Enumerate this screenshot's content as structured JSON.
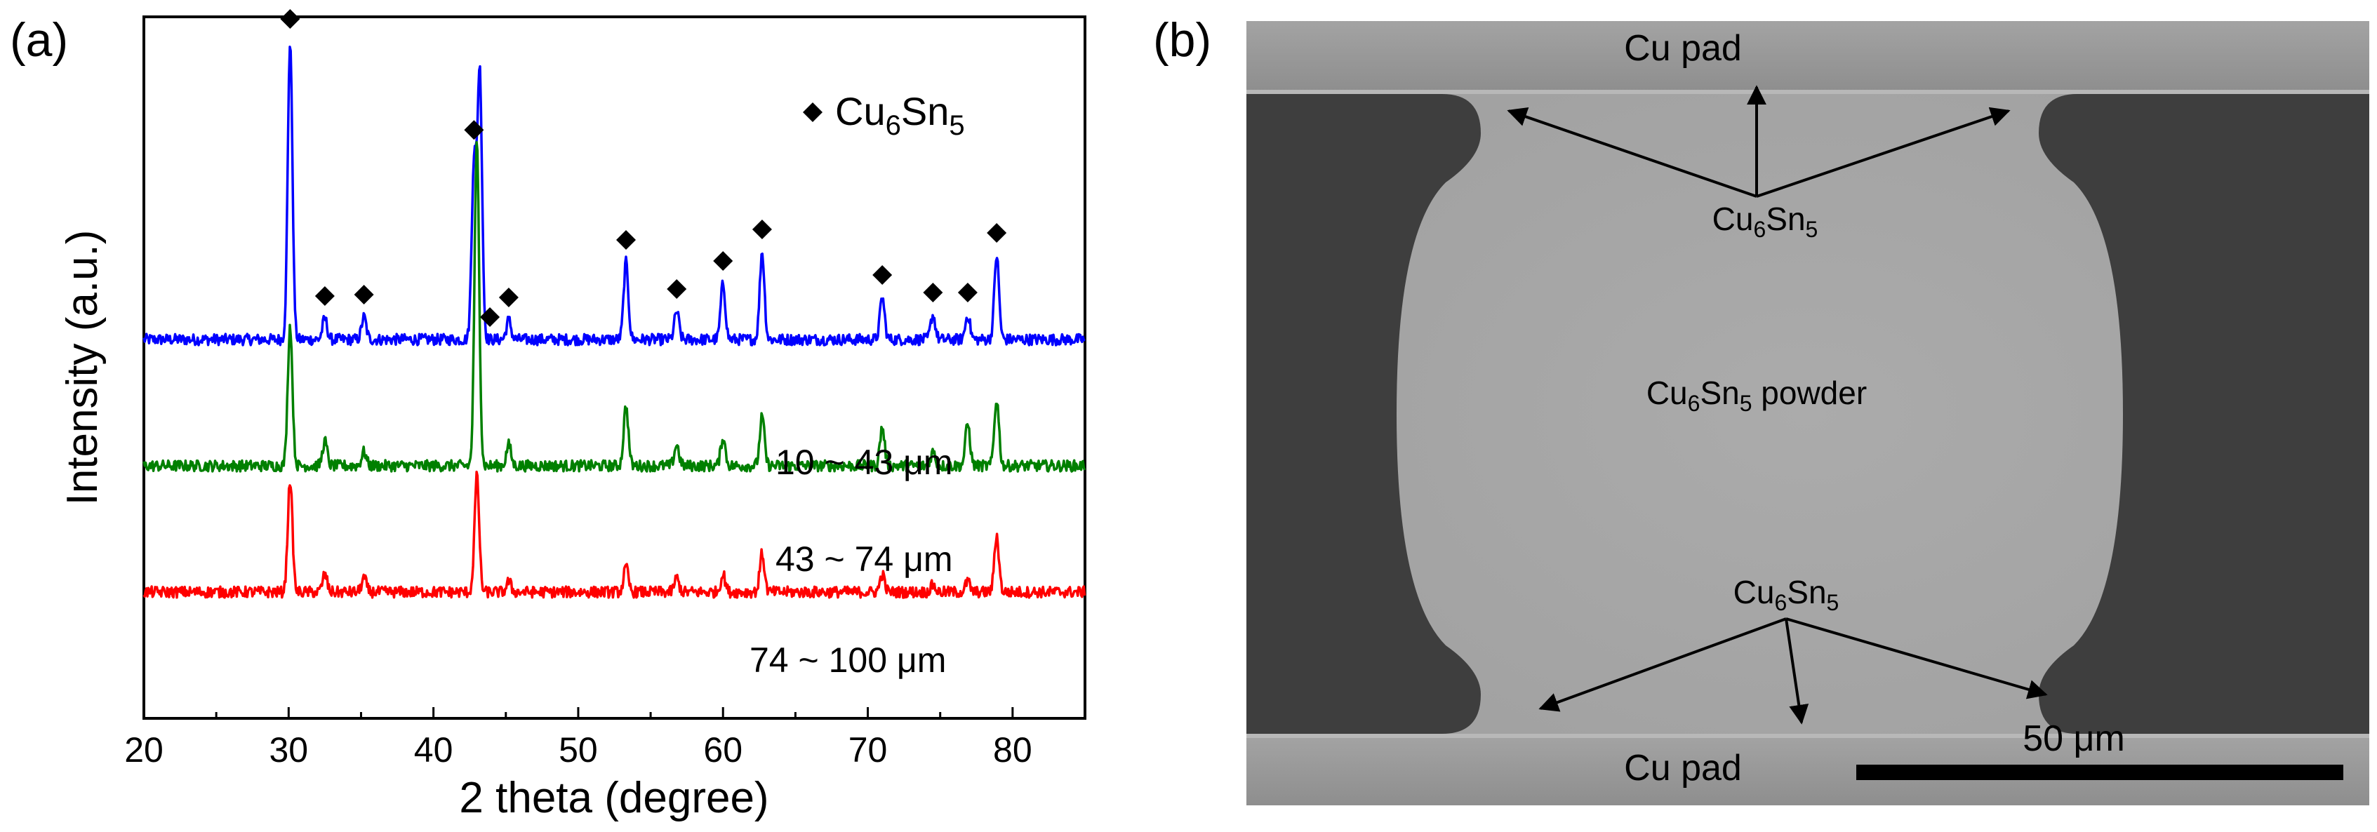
{
  "panels": {
    "a_label": "(a)",
    "b_label": "(b)"
  },
  "chart_data": {
    "type": "line",
    "title": "",
    "xlabel": "2 theta (degree)",
    "ylabel": "Intensity (a.u.)",
    "xlim": [
      20,
      85
    ],
    "xticks": [
      20,
      30,
      40,
      50,
      60,
      70,
      80
    ],
    "xtick_labels": [
      "20",
      "30",
      "40",
      "50",
      "60",
      "70",
      "80"
    ],
    "ylim": [
      0,
      100
    ],
    "y_ticks_shown": false,
    "legend": {
      "symbol": "diamond",
      "label": "Cu6Sn5",
      "label_base": "Cu",
      "label_sub1": "6",
      "label_mid": "Sn",
      "label_sub2": "5",
      "position": "top-right"
    },
    "peak_markers_x": [
      30.1,
      32.5,
      35.2,
      42.8,
      43.9,
      45.2,
      53.3,
      56.8,
      60.0,
      62.7,
      71.0,
      74.5,
      76.9,
      78.9
    ],
    "colors": {
      "series_1": "#0000ff",
      "series_2": "#008000",
      "series_3": "#ff0000",
      "marker": "#000000"
    },
    "series": [
      {
        "name": "10 ~ 43 μm",
        "color": "#0000ff",
        "baseline": 54,
        "peaks": [
          [
            30.1,
            42.5
          ],
          [
            32.5,
            3.0
          ],
          [
            35.2,
            3.2
          ],
          [
            42.8,
            25.0
          ],
          [
            43.2,
            38.0
          ],
          [
            45.2,
            2.8
          ],
          [
            53.3,
            11.0
          ],
          [
            56.8,
            4.0
          ],
          [
            60.0,
            8.0
          ],
          [
            62.7,
            12.5
          ],
          [
            71.0,
            6.0
          ],
          [
            74.5,
            3.5
          ],
          [
            76.9,
            3.5
          ],
          [
            78.9,
            12.0
          ]
        ]
      },
      {
        "name": "43 ~ 74 μm",
        "color": "#008000",
        "baseline": 36,
        "peaks": [
          [
            30.1,
            20.0
          ],
          [
            32.5,
            3.5
          ],
          [
            35.2,
            2.0
          ],
          [
            43.0,
            46.0
          ],
          [
            45.2,
            3.0
          ],
          [
            53.3,
            8.5
          ],
          [
            56.8,
            3.0
          ],
          [
            60.0,
            4.0
          ],
          [
            62.7,
            7.0
          ],
          [
            71.0,
            5.5
          ],
          [
            74.5,
            2.0
          ],
          [
            76.9,
            6.0
          ],
          [
            78.9,
            9.5
          ]
        ]
      },
      {
        "name": "74 ~ 100 μm",
        "color": "#ff0000",
        "baseline": 18,
        "peaks": [
          [
            30.1,
            16.0
          ],
          [
            32.5,
            2.5
          ],
          [
            35.2,
            2.0
          ],
          [
            43.0,
            16.5
          ],
          [
            45.2,
            1.5
          ],
          [
            53.3,
            3.5
          ],
          [
            56.8,
            2.0
          ],
          [
            60.0,
            2.5
          ],
          [
            62.7,
            5.5
          ],
          [
            71.0,
            2.5
          ],
          [
            74.5,
            1.0
          ],
          [
            76.9,
            1.5
          ],
          [
            78.9,
            8.0
          ]
        ]
      }
    ]
  },
  "micrograph": {
    "label_top_pad": "Cu pad",
    "label_bottom_pad": "Cu pad",
    "label_top_imc": {
      "base": "Cu",
      "sub1": "6",
      "mid": "Sn",
      "sub2": "5"
    },
    "label_bottom_imc": {
      "base": "Cu",
      "sub1": "6",
      "mid": "Sn",
      "sub2": "5"
    },
    "label_powder": {
      "base": "Cu",
      "sub1": "6",
      "mid": "Sn",
      "sub2": "5",
      "suffix": " powder"
    },
    "scale_bar_label": "50 μm",
    "colors": {
      "pad": "#9a9a9a",
      "powder": "#a6a6a6",
      "mold": "#3e3e3e",
      "bar": "#000000"
    }
  }
}
